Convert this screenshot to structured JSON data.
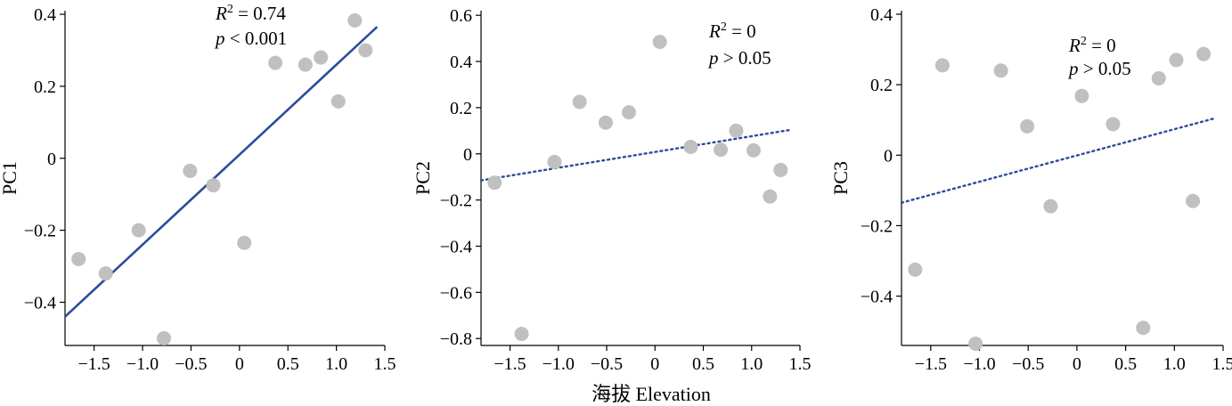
{
  "xlabel": "海拔 Elevation",
  "colors": {
    "points": "#c0c0c0",
    "fit": "#2a4d9b"
  },
  "chart_data": [
    {
      "type": "scatter",
      "ylabel": "PC1",
      "xlim": [
        -1.8,
        1.5
      ],
      "ylim": [
        -0.52,
        0.41
      ],
      "xticks": [
        -1.5,
        -1.0,
        -0.5,
        0,
        0.5,
        1.0,
        1.5
      ],
      "xtick_labels": [
        "−1.5",
        "−1.0",
        "−0.5",
        "0",
        "0.5",
        "1.0",
        "1.5"
      ],
      "yticks": [
        -0.4,
        -0.2,
        0,
        0.2,
        0.4
      ],
      "ytick_labels": [
        "−0.4",
        "−0.2",
        "0",
        "0.2",
        "0.4"
      ],
      "points": [
        {
          "x": -1.66,
          "y": -0.28
        },
        {
          "x": -1.38,
          "y": -0.32
        },
        {
          "x": -1.04,
          "y": -0.2
        },
        {
          "x": -0.78,
          "y": -0.5
        },
        {
          "x": -0.51,
          "y": -0.035
        },
        {
          "x": -0.27,
          "y": -0.075
        },
        {
          "x": 0.05,
          "y": -0.235
        },
        {
          "x": 0.37,
          "y": 0.265
        },
        {
          "x": 0.68,
          "y": 0.26
        },
        {
          "x": 0.84,
          "y": 0.28
        },
        {
          "x": 1.02,
          "y": 0.158
        },
        {
          "x": 1.19,
          "y": 0.383
        },
        {
          "x": 1.3,
          "y": 0.3
        }
      ],
      "fit": {
        "style": "solid",
        "x": [
          -1.8,
          1.42
        ],
        "y": [
          -0.44,
          0.365
        ]
      },
      "annotation": {
        "r2_label": "R",
        "r2_sup": "2",
        "r2_value": " = 0.74",
        "p_label": "p",
        "p_value": " < 0.001"
      }
    },
    {
      "type": "scatter",
      "ylabel": "PC2",
      "xlim": [
        -1.8,
        1.5
      ],
      "ylim": [
        -0.83,
        0.62
      ],
      "xticks": [
        -1.5,
        -1.0,
        -0.5,
        0,
        0.5,
        1.0,
        1.5
      ],
      "xtick_labels": [
        "−1.5",
        "−1.0",
        "−0.5",
        "0",
        "0.5",
        "1.0",
        "1.5"
      ],
      "yticks": [
        -0.8,
        -0.6,
        -0.4,
        -0.2,
        0,
        0.2,
        0.4,
        0.6
      ],
      "ytick_labels": [
        "−0.8",
        "−0.6",
        "−0.4",
        "−0.2",
        "0",
        "0.2",
        "0.4",
        "0.6"
      ],
      "points": [
        {
          "x": -1.66,
          "y": -0.125
        },
        {
          "x": -1.38,
          "y": -0.78
        },
        {
          "x": -1.04,
          "y": -0.035
        },
        {
          "x": -0.78,
          "y": 0.225
        },
        {
          "x": -0.51,
          "y": 0.135
        },
        {
          "x": -0.27,
          "y": 0.18
        },
        {
          "x": 0.05,
          "y": 0.485
        },
        {
          "x": 0.37,
          "y": 0.03
        },
        {
          "x": 0.68,
          "y": 0.018
        },
        {
          "x": 0.84,
          "y": 0.1
        },
        {
          "x": 1.02,
          "y": 0.015
        },
        {
          "x": 1.19,
          "y": -0.185
        },
        {
          "x": 1.3,
          "y": -0.07
        }
      ],
      "fit": {
        "style": "dotted",
        "x": [
          -1.8,
          1.42
        ],
        "y": [
          -0.115,
          0.105
        ]
      },
      "annotation": {
        "r2_label": "R",
        "r2_sup": "2",
        "r2_value": " = 0",
        "p_label": "p",
        "p_value": " > 0.05"
      }
    },
    {
      "type": "scatter",
      "ylabel": "PC3",
      "xlim": [
        -1.8,
        1.5
      ],
      "ylim": [
        -0.54,
        0.41
      ],
      "xticks": [
        -1.5,
        -1.0,
        -0.5,
        0,
        0.5,
        1.0,
        1.5
      ],
      "xtick_labels": [
        "−1.5",
        "−1.0",
        "−0.5",
        "0",
        "0.5",
        "1.0",
        "1.5"
      ],
      "yticks": [
        -0.4,
        -0.2,
        0,
        0.2,
        0.4
      ],
      "ytick_labels": [
        "−0.4",
        "−0.2",
        "0",
        "0.2",
        "0.4"
      ],
      "points": [
        {
          "x": -1.66,
          "y": -0.325
        },
        {
          "x": -1.38,
          "y": 0.255
        },
        {
          "x": -1.04,
          "y": -0.535
        },
        {
          "x": -0.78,
          "y": 0.24
        },
        {
          "x": -0.51,
          "y": 0.082
        },
        {
          "x": -0.27,
          "y": -0.145
        },
        {
          "x": 0.05,
          "y": 0.168
        },
        {
          "x": 0.37,
          "y": 0.088
        },
        {
          "x": 0.68,
          "y": -0.49
        },
        {
          "x": 0.84,
          "y": 0.218
        },
        {
          "x": 1.02,
          "y": 0.27
        },
        {
          "x": 1.19,
          "y": -0.13
        },
        {
          "x": 1.3,
          "y": 0.287
        }
      ],
      "fit": {
        "style": "dotted",
        "x": [
          -1.8,
          1.42
        ],
        "y": [
          -0.135,
          0.105
        ]
      },
      "annotation": {
        "r2_label": "R",
        "r2_sup": "2",
        "r2_value": " = 0",
        "p_label": "p",
        "p_value": " > 0.05"
      }
    }
  ]
}
